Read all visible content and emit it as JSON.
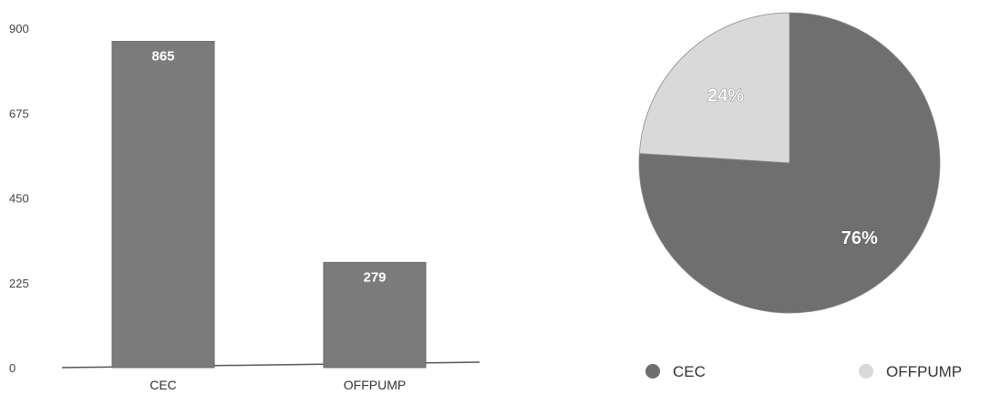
{
  "chart_data": [
    {
      "type": "bar",
      "categories": [
        "CEC",
        "OFFPUMP"
      ],
      "values": [
        865,
        279
      ],
      "data_labels": [
        "865",
        "279"
      ],
      "ylim": [
        0,
        900
      ],
      "yticks": [
        0,
        225,
        450,
        675,
        900
      ],
      "ytick_labels": [
        "0",
        "225",
        "450",
        "675",
        "900"
      ],
      "grid": false,
      "colors": [
        "#7b7b7b",
        "#7b7b7b"
      ]
    },
    {
      "type": "pie",
      "categories": [
        "CEC",
        "OFFPUMP"
      ],
      "values": [
        76,
        24
      ],
      "data_labels": [
        "76%",
        "24%"
      ],
      "start": "top, clockwise",
      "legend_position": "bottom",
      "colors": [
        "#6f6f6f",
        "#d9d9d9"
      ]
    }
  ]
}
